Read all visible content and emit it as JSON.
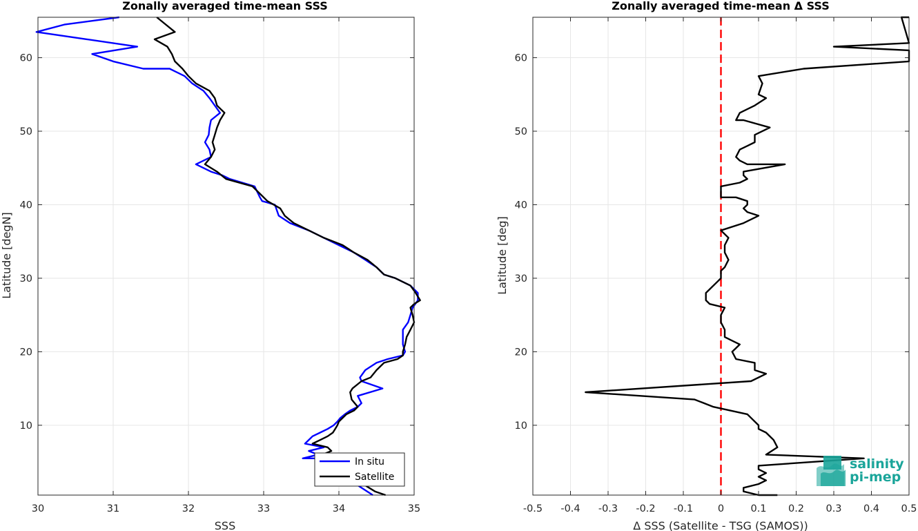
{
  "chart_data": [
    {
      "type": "line",
      "title": "Zonally averaged time-mean SSS",
      "xlabel": "SSS",
      "ylabel": "Latitude [degN]",
      "xlim": [
        30,
        35
      ],
      "ylim": [
        0.5,
        65.5
      ],
      "xticks": [
        "30",
        "31",
        "32",
        "33",
        "34",
        "35"
      ],
      "yticks": [
        "10",
        "20",
        "30",
        "40",
        "50",
        "60"
      ],
      "grid": true,
      "legend": "bottom-right",
      "series": [
        {
          "name": "In situ",
          "color": "#0000ff",
          "points": [
            [
              31.08,
              65.5
            ],
            [
              30.35,
              64.5
            ],
            [
              29.98,
              63.5
            ],
            [
              30.65,
              62.5
            ],
            [
              31.32,
              61.5
            ],
            [
              30.72,
              60.5
            ],
            [
              31.0,
              59.5
            ],
            [
              31.4,
              58.5
            ],
            [
              31.75,
              58.5
            ],
            [
              31.95,
              57.5
            ],
            [
              32.05,
              56.5
            ],
            [
              32.2,
              55.5
            ],
            [
              32.28,
              54.5
            ],
            [
              32.35,
              53.5
            ],
            [
              32.42,
              52.5
            ],
            [
              32.3,
              51.5
            ],
            [
              32.28,
              50.5
            ],
            [
              32.27,
              49.5
            ],
            [
              32.22,
              48.5
            ],
            [
              32.28,
              47.5
            ],
            [
              32.3,
              46.5
            ],
            [
              32.1,
              45.5
            ],
            [
              32.3,
              44.5
            ],
            [
              32.45,
              44
            ],
            [
              32.55,
              43.5
            ],
            [
              32.88,
              42.5
            ],
            [
              32.95,
              41
            ],
            [
              32.98,
              40.5
            ],
            [
              33.15,
              40
            ],
            [
              33.2,
              38.5
            ],
            [
              33.35,
              37.5
            ],
            [
              33.6,
              36.5
            ],
            [
              33.8,
              35.5
            ],
            [
              34.0,
              34.5
            ],
            [
              34.2,
              33.5
            ],
            [
              34.35,
              32.5
            ],
            [
              34.5,
              31.5
            ],
            [
              34.6,
              30.5
            ],
            [
              34.75,
              30.0
            ],
            [
              34.95,
              29.0
            ],
            [
              35.05,
              28.0
            ],
            [
              35.05,
              27.0
            ],
            [
              34.98,
              26.0
            ],
            [
              34.95,
              25.0
            ],
            [
              34.92,
              24.0
            ],
            [
              34.85,
              23.0
            ],
            [
              34.85,
              22.0
            ],
            [
              34.85,
              21.0
            ],
            [
              34.88,
              20.0
            ],
            [
              34.85,
              19.5
            ],
            [
              34.65,
              19.0
            ],
            [
              34.5,
              18.5
            ],
            [
              34.35,
              17.5
            ],
            [
              34.28,
              16.5
            ],
            [
              34.3,
              16.0
            ],
            [
              34.58,
              15.0
            ],
            [
              34.25,
              14.0
            ],
            [
              34.3,
              13.0
            ],
            [
              34.25,
              12.5
            ],
            [
              34.15,
              12.0
            ],
            [
              34.08,
              11.5
            ],
            [
              34.02,
              11.0
            ],
            [
              33.98,
              10.5
            ],
            [
              33.93,
              10.0
            ],
            [
              33.85,
              9.5
            ],
            [
              33.75,
              9.0
            ],
            [
              33.65,
              8.5
            ],
            [
              33.55,
              7.5
            ],
            [
              33.8,
              7.0
            ],
            [
              33.6,
              6.5
            ],
            [
              33.72,
              6.0
            ],
            [
              33.52,
              5.5
            ],
            [
              33.75,
              5.5
            ],
            [
              33.7,
              5.0
            ],
            [
              33.8,
              4.5
            ],
            [
              34.0,
              3.5
            ],
            [
              34.15,
              2.5
            ],
            [
              34.3,
              1.5
            ],
            [
              34.45,
              0.5
            ]
          ]
        },
        {
          "name": "Satellite",
          "color": "#000000",
          "points": [
            [
              31.58,
              65.5
            ],
            [
              31.82,
              63.5
            ],
            [
              31.55,
              62.5
            ],
            [
              31.72,
              61.5
            ],
            [
              31.78,
              60.5
            ],
            [
              31.82,
              59.5
            ],
            [
              31.92,
              58.5
            ],
            [
              32.0,
              57.5
            ],
            [
              32.1,
              56.5
            ],
            [
              32.28,
              55.5
            ],
            [
              32.35,
              54.5
            ],
            [
              32.38,
              53.5
            ],
            [
              32.48,
              52.5
            ],
            [
              32.42,
              51.5
            ],
            [
              32.38,
              50.5
            ],
            [
              32.35,
              49.5
            ],
            [
              32.32,
              48.5
            ],
            [
              32.35,
              47.5
            ],
            [
              32.3,
              46.5
            ],
            [
              32.22,
              45.5
            ],
            [
              32.38,
              44.5
            ],
            [
              32.5,
              43.5
            ],
            [
              32.85,
              42.5
            ],
            [
              32.95,
              41.5
            ],
            [
              33.05,
              40.5
            ],
            [
              33.22,
              39.5
            ],
            [
              33.28,
              38.5
            ],
            [
              33.4,
              37.5
            ],
            [
              33.6,
              36.5
            ],
            [
              33.8,
              35.5
            ],
            [
              34.05,
              34.5
            ],
            [
              34.2,
              33.5
            ],
            [
              34.38,
              32.5
            ],
            [
              34.5,
              31.5
            ],
            [
              34.6,
              30.5
            ],
            [
              34.75,
              30.0
            ],
            [
              34.95,
              29.0
            ],
            [
              35.02,
              28.0
            ],
            [
              35.08,
              27.0
            ],
            [
              35.0,
              26.5
            ],
            [
              34.95,
              26.0
            ],
            [
              34.98,
              25.0
            ],
            [
              35.0,
              24.0
            ],
            [
              34.95,
              23.0
            ],
            [
              34.9,
              22.0
            ],
            [
              34.88,
              21.0
            ],
            [
              34.85,
              20.0
            ],
            [
              34.85,
              19.5
            ],
            [
              34.78,
              19.0
            ],
            [
              34.6,
              18.5
            ],
            [
              34.5,
              17.5
            ],
            [
              34.42,
              16.5
            ],
            [
              34.3,
              16.0
            ],
            [
              34.18,
              15.0
            ],
            [
              34.15,
              14.5
            ],
            [
              34.17,
              13.5
            ],
            [
              34.25,
              12.5
            ],
            [
              34.2,
              12.0
            ],
            [
              34.1,
              11.5
            ],
            [
              34.05,
              11.0
            ],
            [
              34.0,
              10.5
            ],
            [
              33.98,
              10.0
            ],
            [
              33.95,
              9.5
            ],
            [
              33.92,
              9.0
            ],
            [
              33.85,
              8.5
            ],
            [
              33.75,
              8.0
            ],
            [
              33.65,
              7.5
            ],
            [
              33.85,
              7.0
            ],
            [
              33.9,
              6.5
            ],
            [
              33.78,
              6.0
            ],
            [
              33.72,
              5.5
            ],
            [
              33.8,
              5.0
            ],
            [
              34.0,
              4.0
            ],
            [
              34.15,
              3.0
            ],
            [
              34.32,
              2.0
            ],
            [
              34.48,
              1.0
            ],
            [
              34.62,
              0.5
            ]
          ]
        }
      ]
    },
    {
      "type": "line",
      "title": "Zonally averaged time-mean Δ SSS",
      "xlabel": "Δ SSS (Satellite - TSG (SAMOS))",
      "ylabel": "Latitude [deg]",
      "xlim": [
        -0.5,
        0.5
      ],
      "ylim": [
        0.5,
        65.5
      ],
      "xticks": [
        "-0.5",
        "-0.4",
        "-0.3",
        "-0.2",
        "-0.1",
        "0",
        "0.1",
        "0.2",
        "0.3",
        "0.4",
        "0.5"
      ],
      "yticks": [
        "10",
        "20",
        "30",
        "40",
        "50",
        "60"
      ],
      "grid": true,
      "reference_line": {
        "x": 0,
        "color": "#ff0000",
        "style": "dashed"
      },
      "series": [
        {
          "color": "#000000",
          "points": [
            [
              0.5,
              65.5
            ],
            [
              0.48,
              65.5
            ],
            [
              0.5,
              62.0
            ],
            [
              0.3,
              61.5
            ],
            [
              0.5,
              61.0
            ],
            [
              0.5,
              59.5
            ],
            [
              0.22,
              58.5
            ],
            [
              0.1,
              57.5
            ],
            [
              0.11,
              56.5
            ],
            [
              0.1,
              55.0
            ],
            [
              0.12,
              54.5
            ],
            [
              0.09,
              53.5
            ],
            [
              0.07,
              53.0
            ],
            [
              0.05,
              52.5
            ],
            [
              0.04,
              51.5
            ],
            [
              0.06,
              51.5
            ],
            [
              0.13,
              50.5
            ],
            [
              0.09,
              49.5
            ],
            [
              0.09,
              48.5
            ],
            [
              0.07,
              48.0
            ],
            [
              0.05,
              47.5
            ],
            [
              0.04,
              46.5
            ],
            [
              0.05,
              46.0
            ],
            [
              0.07,
              45.5
            ],
            [
              0.17,
              45.5
            ],
            [
              0.06,
              44.5
            ],
            [
              0.06,
              44.0
            ],
            [
              0.07,
              43.5
            ],
            [
              0.05,
              43.0
            ],
            [
              0.0,
              42.5
            ],
            [
              0.0,
              41.0
            ],
            [
              0.04,
              41.0
            ],
            [
              0.07,
              40.5
            ],
            [
              0.07,
              40.0
            ],
            [
              0.06,
              39.5
            ],
            [
              0.07,
              39.0
            ],
            [
              0.1,
              38.5
            ],
            [
              0.06,
              37.5
            ],
            [
              0.0,
              36.5
            ],
            [
              0.02,
              35.5
            ],
            [
              0.01,
              34.5
            ],
            [
              0.01,
              33.5
            ],
            [
              0.02,
              32.5
            ],
            [
              0.01,
              31.5
            ],
            [
              0.0,
              31.0
            ],
            [
              0.0,
              30.0
            ],
            [
              -0.01,
              29.5
            ],
            [
              -0.03,
              28.5
            ],
            [
              -0.04,
              28.0
            ],
            [
              -0.04,
              27.0
            ],
            [
              -0.03,
              26.5
            ],
            [
              0.01,
              26.0
            ],
            [
              0.0,
              25.0
            ],
            [
              0.0,
              24.0
            ],
            [
              0.01,
              23.0
            ],
            [
              0.01,
              22.0
            ],
            [
              0.03,
              21.5
            ],
            [
              0.05,
              21.0
            ],
            [
              0.04,
              20.5
            ],
            [
              0.03,
              20.0
            ],
            [
              0.04,
              19.0
            ],
            [
              0.09,
              18.5
            ],
            [
              0.09,
              17.5
            ],
            [
              0.12,
              17.0
            ],
            [
              0.08,
              16.0
            ],
            [
              -0.36,
              14.5
            ],
            [
              -0.07,
              13.5
            ],
            [
              -0.02,
              12.5
            ],
            [
              0.07,
              11.5
            ],
            [
              0.08,
              11.0
            ],
            [
              0.09,
              10.5
            ],
            [
              0.1,
              10.0
            ],
            [
              0.1,
              9.5
            ],
            [
              0.12,
              9.0
            ],
            [
              0.14,
              8.0
            ],
            [
              0.15,
              7.0
            ],
            [
              0.12,
              6.0
            ],
            [
              0.38,
              5.5
            ],
            [
              0.1,
              4.5
            ],
            [
              0.1,
              4.0
            ],
            [
              0.12,
              3.5
            ],
            [
              0.1,
              3.0
            ],
            [
              0.12,
              2.5
            ],
            [
              0.1,
              2.0
            ],
            [
              0.06,
              1.5
            ],
            [
              0.06,
              1.0
            ],
            [
              0.1,
              0.5
            ],
            [
              0.15,
              0.5
            ]
          ]
        }
      ]
    }
  ],
  "logo": {
    "line1": "salinity",
    "line2": "pi-mep",
    "color": "#1aa59a"
  }
}
